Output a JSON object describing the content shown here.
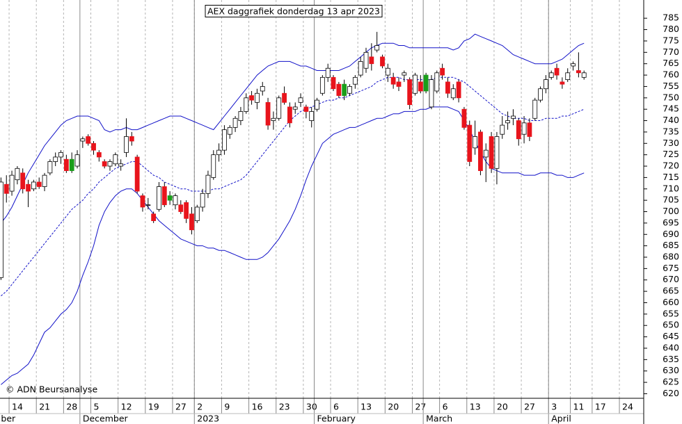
{
  "chart_data": {
    "type": "candlestick",
    "title": "AEX daggrafiek donderdag 13 apr 2023",
    "annotation": "© ADN Beursanalyse",
    "categories": [
      null,
      null,
      "14",
      null,
      null,
      null,
      null,
      "21",
      null,
      null,
      null,
      null,
      "28",
      null,
      null,
      null,
      null,
      "5",
      null,
      null,
      null,
      null,
      "12",
      null,
      null,
      null,
      null,
      "19",
      null,
      null,
      null,
      null,
      "27",
      null,
      null,
      null,
      "2",
      null,
      null,
      null,
      null,
      "9",
      null,
      null,
      null,
      null,
      "16",
      null,
      null,
      null,
      null,
      "23",
      null,
      null,
      null,
      null,
      "30",
      null,
      null,
      null,
      null,
      "6",
      null,
      null,
      null,
      null,
      "13",
      null,
      null,
      null,
      null,
      "20",
      null,
      null,
      null,
      null,
      "27",
      null,
      null,
      null,
      null,
      "6",
      null,
      null,
      null,
      null,
      "13",
      null,
      null,
      null,
      null,
      "20",
      null,
      null,
      null,
      null,
      "27",
      null,
      null,
      null,
      null,
      "3",
      null,
      null,
      null,
      "11",
      null,
      null,
      null,
      "17",
      null,
      null,
      null,
      null,
      "24"
    ],
    "month_labels": [
      "ber",
      null,
      null,
      null,
      null,
      null,
      null,
      null,
      null,
      null,
      null,
      null,
      null,
      null,
      null,
      "December",
      null,
      null,
      null,
      null,
      null,
      null,
      null,
      null,
      null,
      null,
      null,
      null,
      null,
      null,
      null,
      null,
      null,
      null,
      null,
      null,
      "2023",
      null,
      null,
      null,
      null,
      null,
      null,
      null,
      null,
      null,
      null,
      null,
      null,
      null,
      null,
      null,
      null,
      null,
      null,
      null,
      null,
      null,
      "February",
      null,
      null,
      null,
      null,
      null,
      null,
      null,
      null,
      null,
      null,
      null,
      null,
      null,
      null,
      null,
      null,
      null,
      null,
      null,
      "March",
      null,
      null,
      null,
      null,
      null,
      null,
      null,
      null,
      null,
      null,
      null,
      null,
      null,
      null,
      null,
      null,
      null,
      null,
      null,
      null,
      null,
      null,
      "April",
      null,
      null,
      null,
      null,
      null,
      null,
      null,
      null,
      null,
      null,
      null,
      null,
      null
    ],
    "open": [
      671,
      712,
      709,
      714,
      717,
      712,
      710,
      713,
      711,
      717,
      722,
      724,
      723,
      723,
      720,
      731,
      733,
      730,
      726,
      722,
      720,
      721,
      720,
      726,
      733,
      724,
      707,
      703,
      699,
      701,
      711,
      707,
      703,
      703,
      704,
      699,
      696,
      702,
      708,
      715,
      725,
      727,
      734,
      737,
      740,
      744,
      751,
      748,
      753,
      748,
      740,
      741,
      752,
      746,
      745,
      748,
      746,
      740,
      745,
      752,
      759,
      759,
      756,
      756,
      752,
      756,
      760,
      763,
      768,
      771,
      768,
      760,
      759,
      757,
      760,
      758,
      752,
      757,
      760,
      746,
      753,
      763,
      757,
      750,
      757,
      745,
      738,
      728,
      735,
      724,
      733,
      719,
      734,
      739,
      741,
      740,
      734,
      739,
      741,
      749,
      754,
      759,
      763,
      757,
      758,
      764,
      762,
      759,
      null,
      null,
      null,
      null,
      null,
      null,
      null
    ],
    "high": [
      715,
      716,
      718,
      720,
      719,
      714,
      714,
      715,
      717,
      723,
      726,
      727,
      725,
      726,
      727,
      733,
      734,
      731,
      727,
      723,
      723,
      726,
      723,
      741,
      735,
      725,
      708,
      706,
      700,
      713,
      713,
      709,
      708,
      705,
      705,
      702,
      703,
      710,
      718,
      727,
      730,
      738,
      738,
      742,
      746,
      752,
      753,
      754,
      757,
      750,
      744,
      751,
      755,
      748,
      748,
      752,
      747,
      746,
      750,
      760,
      765,
      760,
      757,
      758,
      756,
      760,
      768,
      772,
      774,
      779,
      769,
      765,
      761,
      759,
      762,
      759,
      761,
      760,
      761,
      760,
      762,
      765,
      759,
      756,
      758,
      746,
      740,
      740,
      736,
      730,
      735,
      735,
      742,
      744,
      745,
      741,
      742,
      741,
      750,
      755,
      760,
      762,
      765,
      759,
      763,
      766,
      770,
      762,
      null,
      null,
      null,
      null,
      null,
      null,
      null
    ],
    "low": [
      670,
      704,
      707,
      712,
      708,
      702,
      709,
      710,
      709,
      716,
      720,
      721,
      717,
      717,
      719,
      728,
      729,
      725,
      722,
      719,
      718,
      720,
      718,
      724,
      729,
      708,
      700,
      701,
      695,
      700,
      702,
      703,
      701,
      699,
      695,
      690,
      695,
      700,
      706,
      714,
      722,
      725,
      732,
      735,
      738,
      743,
      747,
      745,
      751,
      736,
      736,
      740,
      747,
      737,
      743,
      746,
      741,
      737,
      744,
      751,
      757,
      753,
      750,
      749,
      751,
      754,
      759,
      761,
      762,
      770,
      763,
      757,
      754,
      753,
      757,
      745,
      751,
      752,
      752,
      745,
      752,
      758,
      750,
      749,
      748,
      736,
      720,
      725,
      716,
      713,
      717,
      712,
      732,
      736,
      738,
      729,
      730,
      731,
      740,
      748,
      752,
      758,
      758,
      754,
      757,
      762,
      759,
      758,
      null,
      null,
      null,
      null,
      null,
      null,
      null
    ],
    "close": [
      713,
      708,
      716,
      719,
      710,
      709,
      713,
      711,
      716,
      722,
      724,
      726,
      718,
      718,
      725,
      732,
      730,
      727,
      724,
      720,
      722,
      725,
      721,
      733,
      731,
      709,
      702,
      703,
      696,
      711,
      703,
      705,
      707,
      700,
      697,
      692,
      702,
      708,
      716,
      725,
      727,
      736,
      737,
      741,
      744,
      750,
      749,
      752,
      755,
      738,
      741,
      750,
      748,
      739,
      746,
      750,
      744,
      744,
      749,
      759,
      763,
      754,
      751,
      751,
      755,
      759,
      766,
      770,
      765,
      773,
      764,
      763,
      756,
      755,
      761,
      747,
      760,
      753,
      753,
      758,
      761,
      760,
      752,
      754,
      750,
      737,
      722,
      733,
      718,
      727,
      719,
      733,
      738,
      740,
      742,
      732,
      739,
      733,
      749,
      754,
      758,
      761,
      760,
      756,
      761,
      765,
      761,
      761,
      null,
      null,
      null,
      null,
      null,
      null,
      null
    ],
    "candle_colors": {
      "up": "#ffffff",
      "down_above_prev": "#1a9e1a",
      "down": "#e8141c"
    },
    "overlays": [
      {
        "color": "#1010c8",
        "dashed": false,
        "values": [
          695,
          698,
          702,
          707,
          712,
          717,
          721,
          725,
          729,
          732,
          735,
          738,
          740,
          741,
          742,
          742,
          742,
          741,
          740,
          736,
          735,
          736,
          736,
          737,
          736,
          736,
          737,
          738,
          739,
          740,
          741,
          742,
          742,
          742,
          741,
          740,
          739,
          738,
          737,
          736,
          739,
          742,
          745,
          748,
          751,
          754,
          757,
          760,
          762,
          764,
          765,
          766,
          766,
          766,
          765,
          764,
          764,
          763,
          762,
          762,
          762,
          762,
          762,
          763,
          764,
          766,
          768,
          770,
          772,
          773,
          774,
          774,
          774,
          773,
          773,
          772,
          772,
          772,
          772,
          772,
          772,
          772,
          772,
          771,
          772,
          775,
          776,
          778,
          777,
          776,
          775,
          774,
          773,
          771,
          769,
          768,
          767,
          766,
          765,
          765,
          765,
          765,
          766,
          767,
          769,
          771,
          773,
          774,
          null,
          null,
          null,
          null,
          null,
          null,
          null
        ]
      },
      {
        "color": "#1010c8",
        "dashed": true,
        "values": [
          663,
          665,
          668,
          671,
          674,
          677,
          680,
          683,
          686,
          689,
          692,
          695,
          698,
          701,
          703,
          705,
          708,
          710,
          713,
          715,
          717,
          719,
          720,
          721,
          722,
          722,
          720,
          718,
          716,
          715,
          713,
          712,
          711,
          710,
          710,
          709,
          709,
          709,
          709,
          710,
          710,
          711,
          712,
          713,
          714,
          716,
          719,
          722,
          725,
          728,
          731,
          734,
          737,
          740,
          742,
          744,
          745,
          746,
          747,
          748,
          749,
          749,
          750,
          750,
          751,
          752,
          753,
          754,
          755,
          757,
          758,
          759,
          759,
          759,
          758,
          758,
          758,
          758,
          758,
          758,
          759,
          759,
          759,
          759,
          758,
          757,
          755,
          753,
          751,
          749,
          747,
          745,
          743,
          742,
          741,
          741,
          741,
          740,
          740,
          740,
          741,
          741,
          741,
          742,
          742,
          743,
          744,
          745,
          null,
          null,
          null,
          null,
          null,
          null,
          null
        ]
      },
      {
        "color": "#1010c8",
        "dashed": false,
        "values": [
          624,
          626,
          628,
          629,
          631,
          633,
          637,
          642,
          647,
          649,
          652,
          655,
          657,
          660,
          665,
          672,
          678,
          685,
          694,
          700,
          704,
          707,
          709,
          710,
          710,
          708,
          705,
          702,
          699,
          696,
          694,
          692,
          690,
          688,
          687,
          686,
          685,
          685,
          684,
          684,
          683,
          683,
          682,
          681,
          680,
          679,
          679,
          679,
          680,
          682,
          685,
          688,
          692,
          696,
          701,
          707,
          714,
          720,
          725,
          730,
          732,
          734,
          735,
          736,
          737,
          737,
          738,
          739,
          740,
          741,
          741,
          742,
          743,
          743,
          744,
          744,
          744,
          745,
          745,
          746,
          746,
          746,
          746,
          745,
          744,
          740,
          736,
          731,
          726,
          722,
          719,
          718,
          717,
          717,
          717,
          717,
          716,
          716,
          716,
          717,
          717,
          717,
          716,
          716,
          715,
          715,
          716,
          717,
          null,
          null,
          null,
          null,
          null,
          null,
          null
        ]
      }
    ],
    "ylim": [
      618,
      793
    ],
    "yticks": [
      620,
      625,
      630,
      635,
      640,
      645,
      650,
      655,
      660,
      665,
      670,
      675,
      680,
      685,
      690,
      695,
      700,
      705,
      710,
      715,
      720,
      725,
      730,
      735,
      740,
      745,
      750,
      755,
      760,
      765,
      770,
      775,
      780,
      785
    ],
    "yaxis_side": "right",
    "grid": true
  }
}
